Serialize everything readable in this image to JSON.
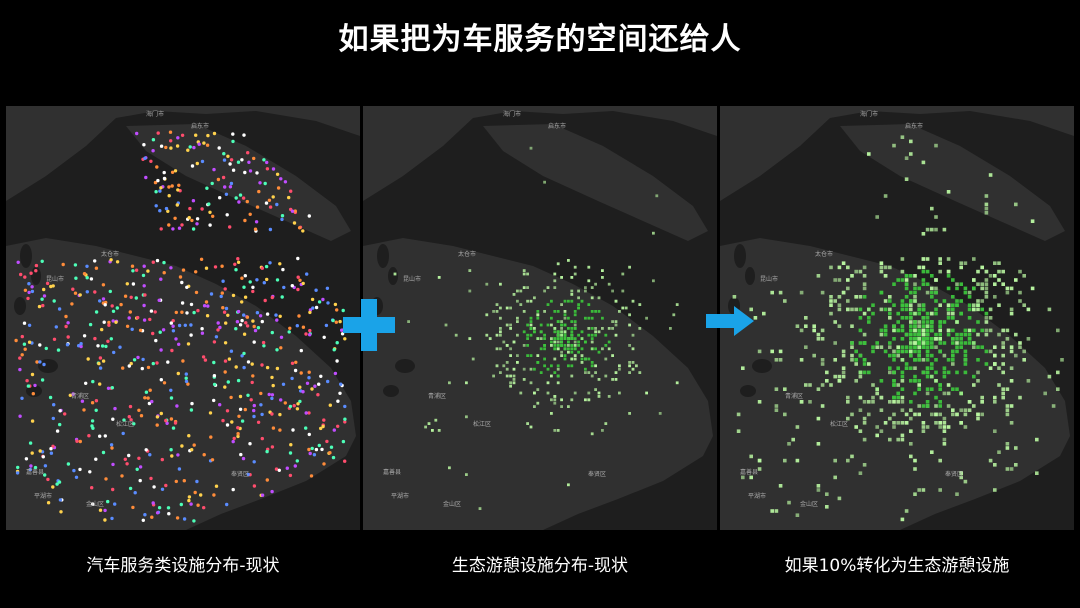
{
  "title": "如果把为车服务的空间还给人",
  "colors": {
    "background": "#000000",
    "map_land": "#303030",
    "map_water": "#1e1e1e",
    "operator_blue": "#1aa3e8",
    "green_facility": "#b8f5a0",
    "green_dense": "#3cc23c"
  },
  "icons": {
    "plus": "plus-icon",
    "arrow": "arrow-right-icon"
  },
  "panels": [
    {
      "caption": "汽车服务类设施分布-现状",
      "labels": [
        "海门市",
        "启东市",
        "昆山市",
        "太仓市",
        "嘉善县",
        "平湖市",
        "青浦区",
        "松江区",
        "金山区",
        "奉贤区"
      ]
    },
    {
      "caption": "生态游憩设施分布-现状",
      "labels": [
        "海门市",
        "启东市",
        "昆山市",
        "太仓市",
        "嘉善县",
        "平湖市",
        "青浦区",
        "松江区",
        "金山区",
        "奉贤区"
      ]
    },
    {
      "caption": "如果10%转化为生态游憩设施",
      "labels": [
        "海门市",
        "启东市",
        "昆山市",
        "太仓市",
        "嘉善县",
        "平湖市",
        "青浦区",
        "松江区",
        "金山区",
        "奉贤区"
      ]
    }
  ]
}
